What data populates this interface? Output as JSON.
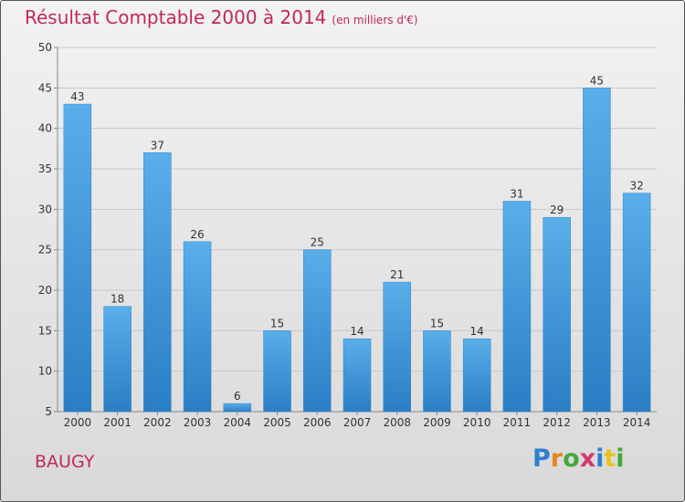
{
  "header": {
    "title": "Résultat Comptable 2000 à 2014",
    "unit": "(en milliers d'€)"
  },
  "footer": {
    "commune": "BAUGY",
    "brand": "Proxiti"
  },
  "colors": {
    "title": "#c0285f",
    "bar_top": "#5aaeea",
    "bar_bottom": "#2a7ec4",
    "grid": "#c8c8c8",
    "axis": "#888888"
  },
  "chart_data": {
    "type": "bar",
    "title": "Résultat Comptable 2000 à 2014",
    "subtitle": "(en milliers d'€)",
    "xlabel": "",
    "ylabel": "",
    "categories": [
      "2000",
      "2001",
      "2002",
      "2003",
      "2004",
      "2005",
      "2006",
      "2007",
      "2008",
      "2009",
      "2010",
      "2011",
      "2012",
      "2013",
      "2014"
    ],
    "values": [
      43,
      18,
      37,
      26,
      6,
      15,
      25,
      14,
      21,
      15,
      14,
      31,
      29,
      45,
      32
    ],
    "ylim": [
      5,
      50
    ],
    "yticks": [
      5,
      10,
      15,
      20,
      25,
      30,
      35,
      40,
      45,
      50
    ],
    "grid": true,
    "legend": "none"
  }
}
